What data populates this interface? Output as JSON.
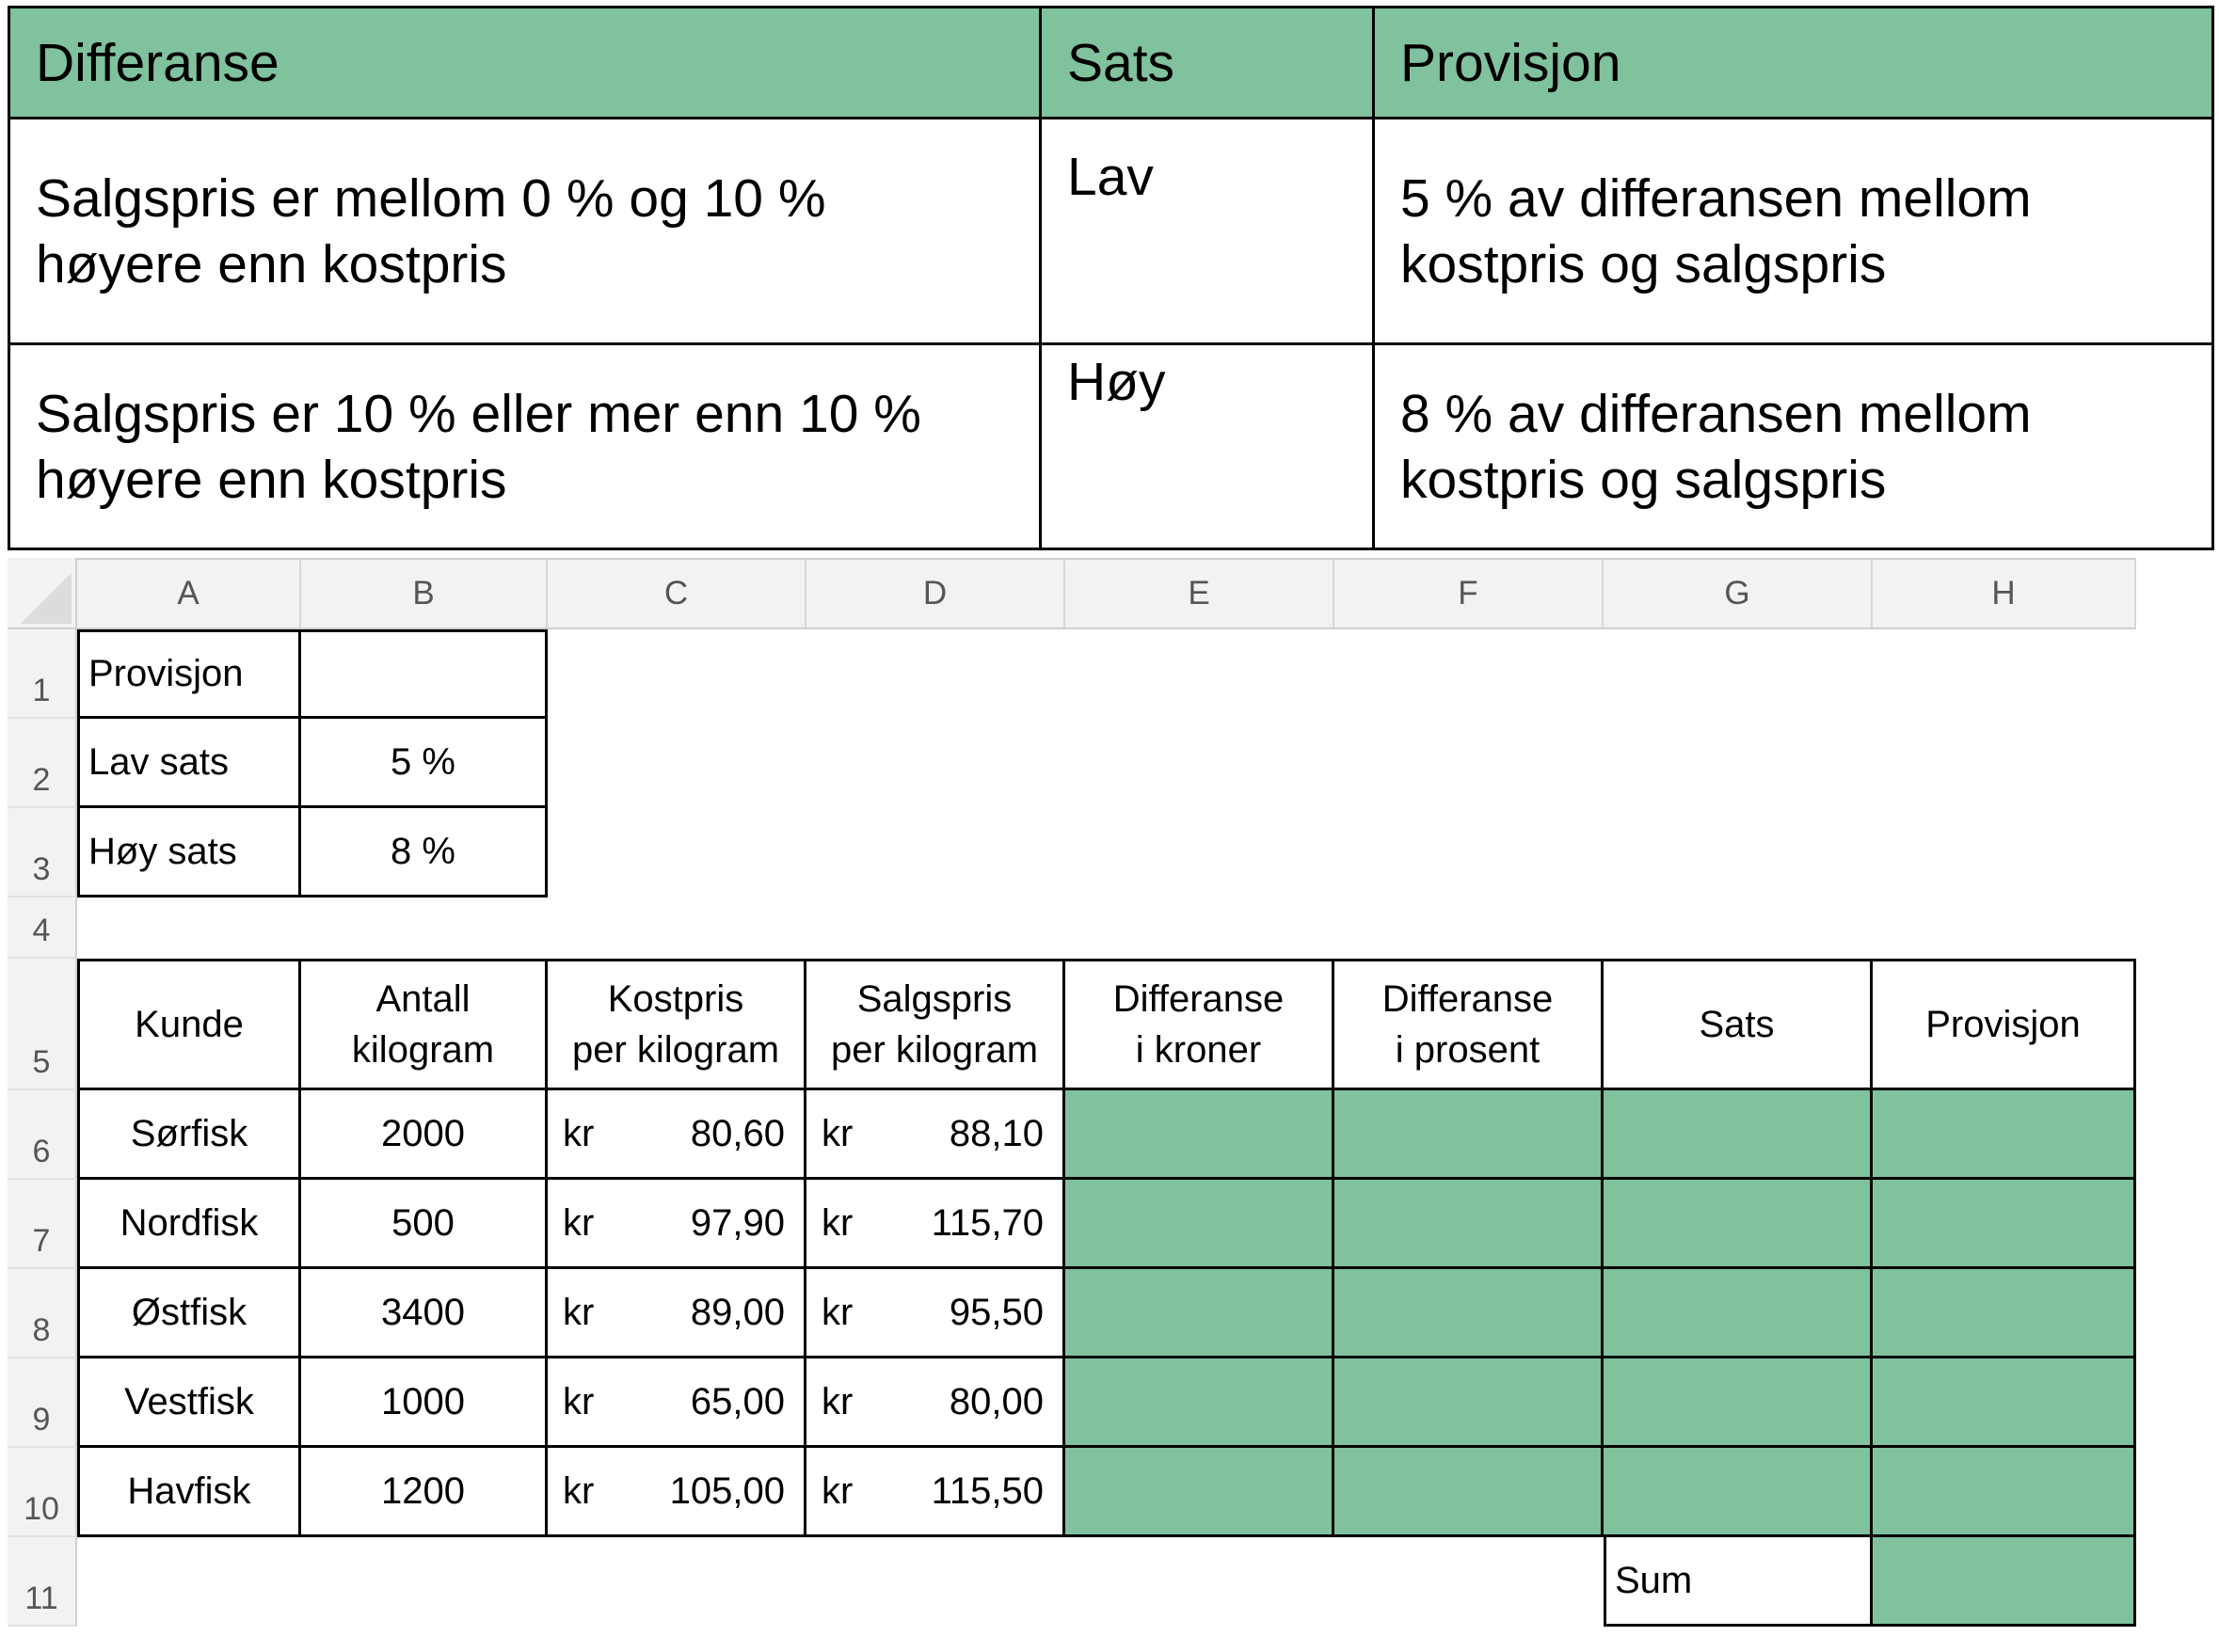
{
  "info_table": {
    "headers": [
      "Differanse",
      "Sats",
      "Provisjon"
    ],
    "rows": [
      {
        "differanse": [
          "Salgspris er mellom 0 % og 10 %",
          "høyere enn kostpris"
        ],
        "sats": "Lav",
        "provisjon": [
          "5 % av differansen mellom",
          "kostpris og salgspris"
        ]
      },
      {
        "differanse": [
          "Salgspris er 10 % eller mer enn 10 %",
          "høyere enn kostpris"
        ],
        "sats": "Høy",
        "provisjon": [
          "8 % av differansen mellom",
          "kostpris og salgspris"
        ]
      }
    ]
  },
  "sheet": {
    "columns": [
      "A",
      "B",
      "C",
      "D",
      "E",
      "F",
      "G",
      "H"
    ],
    "rows": [
      "1",
      "2",
      "3",
      "4",
      "5",
      "6",
      "7",
      "8",
      "9",
      "10",
      "11"
    ],
    "params": [
      {
        "label": "Provisjon",
        "value": ""
      },
      {
        "label": "Lav sats",
        "value": "5 %"
      },
      {
        "label": "Høy sats",
        "value": "8 %"
      }
    ],
    "headers": [
      [
        "Kunde"
      ],
      [
        "Antall",
        "kilogram"
      ],
      [
        "Kostpris",
        "per kilogram"
      ],
      [
        "Salgspris",
        "per kilogram"
      ],
      [
        "Differanse",
        "i kroner"
      ],
      [
        "Differanse",
        "i prosent"
      ],
      [
        "Sats"
      ],
      [
        "Provisjon"
      ]
    ],
    "currency": "kr",
    "data": [
      {
        "kunde": "Sørfisk",
        "kg": "2000",
        "kostpris": "80,60",
        "salgspris": "88,10"
      },
      {
        "kunde": "Nordfisk",
        "kg": "500",
        "kostpris": "97,90",
        "salgspris": "115,70"
      },
      {
        "kunde": "Østfisk",
        "kg": "3400",
        "kostpris": "89,00",
        "salgspris": "95,50"
      },
      {
        "kunde": "Vestfisk",
        "kg": "1000",
        "kostpris": "65,00",
        "salgspris": "80,00"
      },
      {
        "kunde": "Havfisk",
        "kg": "1200",
        "kostpris": "105,00",
        "salgspris": "115,50"
      }
    ],
    "sum_label": "Sum",
    "highlight_color": "#80c19e"
  }
}
